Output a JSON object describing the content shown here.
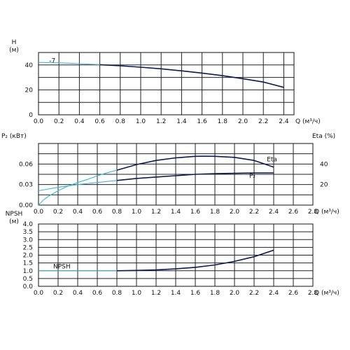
{
  "colors": {
    "dark": "#0a1a55",
    "light": "#3bb8d8",
    "grid": "#222222"
  },
  "chart_data": [
    {
      "type": "line",
      "ylabel": "H",
      "yunit": "(м)",
      "xlabel": "Q (м³/ч)",
      "xlim": [
        0,
        2.5
      ],
      "ylim": [
        0,
        50
      ],
      "x_ticks": [
        "0.0",
        "0.2",
        "0.4",
        "0.6",
        "0.8",
        "1.0",
        "1.2",
        "1.4",
        "1.6",
        "1.8",
        "2.0",
        "2.2",
        "2.4"
      ],
      "y_ticks": [
        "0",
        "20",
        "40"
      ],
      "grid": true,
      "annotations": [
        {
          "text": "-7",
          "x": 0.05,
          "y": 43
        }
      ],
      "series": [
        {
          "style": "light",
          "x": [
            0.0,
            0.1,
            0.2,
            0.3,
            0.4,
            0.5,
            0.6
          ],
          "y": [
            42,
            41.9,
            41.7,
            41.4,
            41.0,
            40.6,
            40.2
          ]
        },
        {
          "style": "dark",
          "x": [
            0.6,
            0.8,
            1.0,
            1.2,
            1.4,
            1.6,
            1.8,
            2.0,
            2.2,
            2.4
          ],
          "y": [
            40.2,
            39.3,
            38.2,
            36.9,
            35.3,
            33.5,
            31.4,
            29.0,
            26.3,
            22.0
          ]
        }
      ]
    },
    {
      "type": "line",
      "ylabel": "P₂ (кВт)",
      "ylabel_right": "Eta (%)",
      "xlabel": "Q (м³/ч)",
      "xlim": [
        0,
        2.8
      ],
      "ylim": [
        0,
        0.09
      ],
      "ylim_right": [
        0,
        60
      ],
      "x_ticks": [
        "0.0",
        "0.2",
        "0.4",
        "0.6",
        "0.8",
        "1.0",
        "1.2",
        "1.4",
        "1.6",
        "1.8",
        "2.0",
        "2.2",
        "2.4",
        "2.6",
        "2.8"
      ],
      "y_ticks": [
        "0.00",
        "0.03",
        "0.06"
      ],
      "y_ticks_right": [
        "20",
        "40"
      ],
      "grid": true,
      "series": [
        {
          "name": "Eta",
          "axis": "right",
          "style": "light",
          "x": [
            0.0,
            0.05,
            0.1,
            0.2,
            0.3,
            0.4,
            0.5,
            0.6,
            0.7,
            0.8
          ],
          "y": [
            0,
            5,
            8.5,
            14,
            18.5,
            22,
            25,
            28.5,
            31.5,
            34
          ]
        },
        {
          "name": "Eta",
          "axis": "right",
          "style": "dark",
          "x": [
            0.8,
            1.0,
            1.2,
            1.4,
            1.6,
            1.7,
            1.8,
            2.0,
            2.2,
            2.4
          ],
          "y": [
            34,
            39.5,
            43.5,
            46.0,
            47.5,
            47.6,
            47.5,
            46.5,
            43.5,
            37.0
          ]
        },
        {
          "name": "P₂",
          "axis": "left",
          "style": "light",
          "x": [
            0.0,
            0.2,
            0.4,
            0.6,
            0.8
          ],
          "y": [
            0.021,
            0.026,
            0.03,
            0.033,
            0.036
          ]
        },
        {
          "name": "P₂",
          "axis": "left",
          "style": "dark",
          "x": [
            0.8,
            1.0,
            1.2,
            1.4,
            1.6,
            1.8,
            2.0,
            2.2,
            2.4
          ],
          "y": [
            0.036,
            0.039,
            0.041,
            0.043,
            0.045,
            0.046,
            0.0465,
            0.047,
            0.047
          ]
        }
      ],
      "labels": [
        {
          "text": "Eta",
          "x": 2.33,
          "y_left": 0.064
        },
        {
          "text": "P₂",
          "x": 2.15,
          "y_left": 0.04
        }
      ]
    },
    {
      "type": "line",
      "ylabel": "NPSH",
      "yunit": "(м)",
      "xlabel": "Q (м³/ч)",
      "xlim": [
        0,
        2.8
      ],
      "ylim": [
        0,
        4.0
      ],
      "x_ticks": [
        "0.0",
        "0.2",
        "0.4",
        "0.6",
        "0.8",
        "1.0",
        "1.2",
        "1.4",
        "1.6",
        "1.8",
        "2.0",
        "2.2",
        "2.4",
        "2.6",
        "2.8"
      ],
      "y_ticks": [
        "0.0",
        "0.5",
        "1.0",
        "1.5",
        "2.0",
        "2.5",
        "3.0",
        "3.5",
        "4.0"
      ],
      "grid": true,
      "series": [
        {
          "name": "NPSH",
          "style": "light",
          "x": [
            0.0,
            0.2,
            0.4,
            0.6,
            0.8
          ],
          "y": [
            1.0,
            1.0,
            1.0,
            1.0,
            1.0
          ]
        },
        {
          "name": "NPSH",
          "style": "dark",
          "x": [
            0.8,
            1.0,
            1.2,
            1.4,
            1.6,
            1.8,
            2.0,
            2.2,
            2.4
          ],
          "y": [
            1.0,
            1.02,
            1.05,
            1.12,
            1.22,
            1.37,
            1.6,
            1.9,
            2.32
          ]
        }
      ],
      "labels": [
        {
          "text": "NPSH",
          "x": 0.15,
          "y": 1.15
        }
      ]
    }
  ]
}
